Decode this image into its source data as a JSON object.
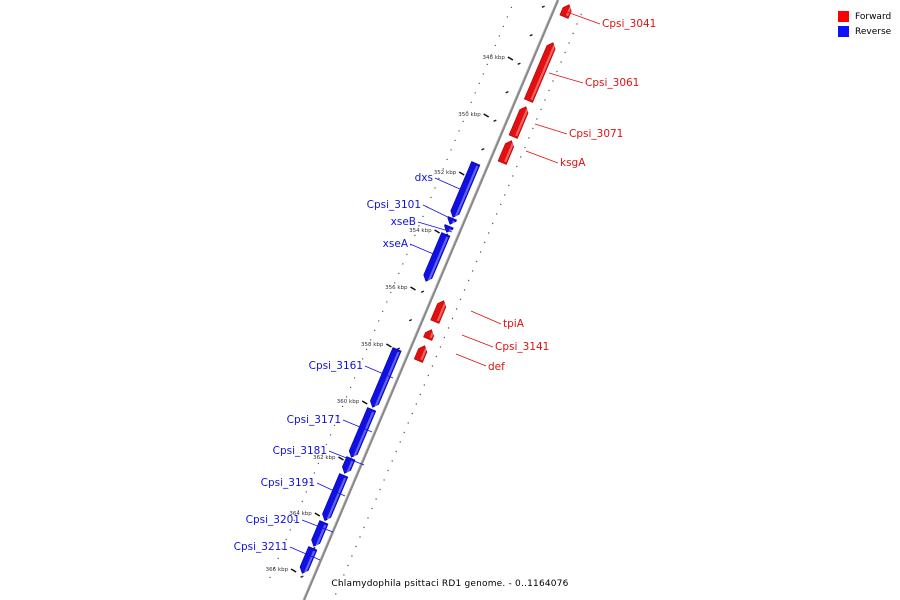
{
  "legend": [
    {
      "label": "Forward",
      "color": "#ff0000"
    },
    {
      "label": "Reverse",
      "color": "#1010ff"
    }
  ],
  "caption": "Chlamydophila psittaci RD1 genome. - 0..1164076",
  "axis": {
    "tick_labels": [
      "348 kbp",
      "350 kbp",
      "352 kbp",
      "354 kbp",
      "356 kbp",
      "358 kbp",
      "360 kbp",
      "362 kbp",
      "364 kbp",
      "366 kbp"
    ]
  },
  "genes": {
    "forward": [
      {
        "name": "Cpsi_3041",
        "color": "#e01010"
      },
      {
        "name": "Cpsi_3061",
        "color": "#e01010"
      },
      {
        "name": "Cpsi_3071",
        "color": "#e01010"
      },
      {
        "name": "ksgA",
        "color": "#e01010"
      },
      {
        "name": "tpiA",
        "color": "#e01010"
      },
      {
        "name": "Cpsi_3141",
        "color": "#e01010"
      },
      {
        "name": "def",
        "color": "#e01010"
      }
    ],
    "reverse": [
      {
        "name": "dxs",
        "color": "#1010e0"
      },
      {
        "name": "Cpsi_3101",
        "color": "#1010e0"
      },
      {
        "name": "xseB",
        "color": "#1010e0"
      },
      {
        "name": "xseA",
        "color": "#1010e0"
      },
      {
        "name": "Cpsi_3161",
        "color": "#1010e0"
      },
      {
        "name": "Cpsi_3171",
        "color": "#1010e0"
      },
      {
        "name": "Cpsi_3181",
        "color": "#1010e0"
      },
      {
        "name": "Cpsi_3191",
        "color": "#1010e0"
      },
      {
        "name": "Cpsi_3201",
        "color": "#1010e0"
      },
      {
        "name": "Cpsi_3211",
        "color": "#1010e0"
      }
    ]
  }
}
